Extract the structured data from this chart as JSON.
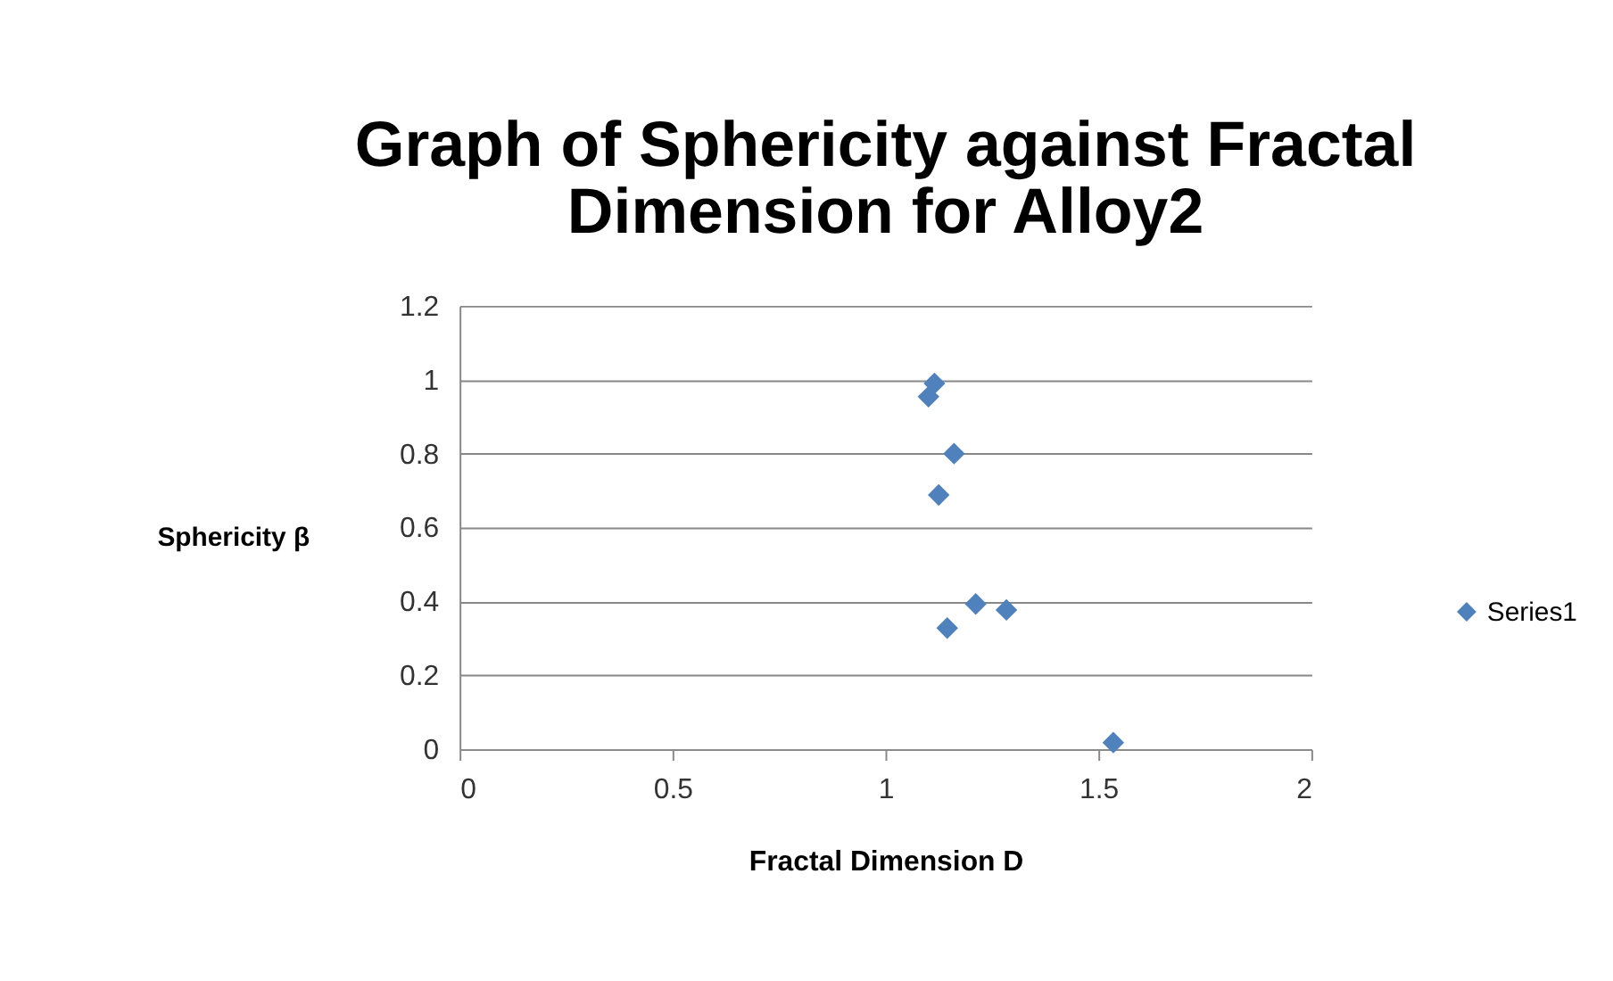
{
  "chart_data": {
    "type": "scatter",
    "title": [
      "Graph of Sphericity against Fractal",
      "Dimension for Alloy2"
    ],
    "xlabel": "Fractal Dimension  D",
    "ylabel": "Sphericity β",
    "series": [
      {
        "name": "Series1",
        "color": "#4f81bd",
        "x": [
          1.115,
          1.101,
          1.161,
          1.125,
          1.212,
          1.284,
          1.145,
          1.535
        ],
        "values": [
          0.99,
          0.954,
          0.8,
          0.688,
          0.393,
          0.377,
          0.328,
          0.018
        ]
      }
    ],
    "xlim": [
      0,
      2
    ],
    "xticks": [
      0,
      0.5,
      1,
      1.5,
      2
    ],
    "ylim": [
      0,
      1.2
    ],
    "yticks": [
      0,
      0.2,
      0.4,
      0.6,
      0.8,
      1,
      1.2
    ],
    "grid": "y",
    "legend": "right",
    "marker": "diamond"
  }
}
